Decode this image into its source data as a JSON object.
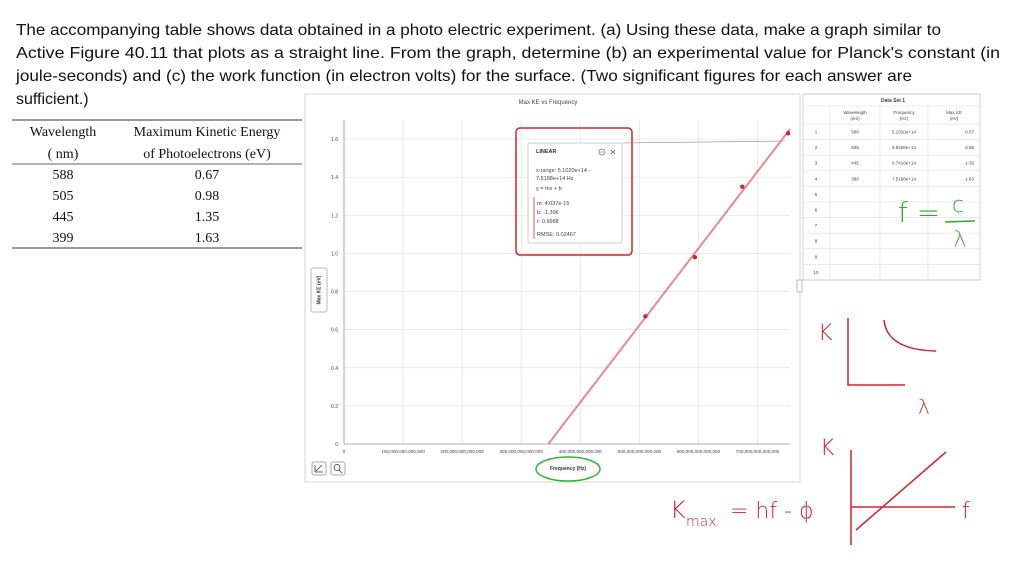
{
  "problem": {
    "lines": [
      "The accompanying table shows data obtained in a photo electric experiment. (a) Using these data, make a graph similar to",
      "Active Figure 40.11 that plots as a straight line. From the graph, determine (b) an experimental value for Planck's constant (in",
      "joule-seconds) and (c) the work function (in electron volts) for the surface. (Two significant figures for each answer are",
      "sufficient.)"
    ]
  },
  "table": {
    "headers": [
      [
        "Wavelength",
        "( nm)"
      ],
      [
        "Maximum Kinetic Energy",
        "of Photoelectrons (eV)"
      ]
    ],
    "rows": [
      [
        "588",
        "0.67"
      ],
      [
        "505",
        "0.98"
      ],
      [
        "445",
        "1.35"
      ],
      [
        "399",
        "1.63"
      ]
    ]
  },
  "chart_data": {
    "type": "scatter",
    "title": "Max KE vs Frequency",
    "x_label": "Frequency (Hz)",
    "y_label": "Max KE (eV)",
    "x": [
      510200000000000,
      594060000000000,
      674160000000000,
      751880000000000
    ],
    "values": [
      0.67,
      0.98,
      1.35,
      1.63
    ],
    "color": "#c0282e",
    "xlim": [
      0,
      755000000000000
    ],
    "ylim": [
      0,
      1.7
    ],
    "xticks": [
      0,
      {
        "value": 100000000000000,
        "label": "100,000,000,000,000"
      },
      {
        "value": 200000000000000,
        "label": "200,000,000,000,000"
      },
      {
        "value": 300000000000000,
        "label": "300,000,000,000,000"
      },
      {
        "value": 400000000000000,
        "label": "400,000,000,000,000"
      },
      {
        "value": 500000000000000,
        "label": "500,000,000,000,000"
      },
      {
        "value": 600000000000000,
        "label": "600,000,000,000,000"
      },
      {
        "value": 700000000000000,
        "label": "700,000,000,000,000"
      }
    ],
    "yticks": [
      0,
      0.2,
      0.4,
      0.6,
      0.8,
      {
        "value": 1,
        "label": "1.0"
      },
      1.2,
      1.4,
      1.6
    ],
    "grid": true,
    "fit": {
      "name": "LINEAR",
      "x_range": [
        "x-range: 5.1020e+14 -",
        "7.5188e+14 Hz"
      ],
      "equation": "y = mx + b",
      "m": {
        "value": 4.037e-15,
        "label": "m: 4.037e-15"
      },
      "b": {
        "value": -1.396,
        "label": "b: -1.396"
      },
      "r": "r: 0.9988",
      "rmse": "RMSE: 0.02467",
      "color": "#e58a95"
    }
  },
  "data_set": {
    "title": "Data Set 1",
    "columns": [
      [
        "Wavelength",
        "(nm)"
      ],
      [
        "Frequency",
        "(Hz)"
      ],
      [
        "Max KE",
        "(eV)"
      ]
    ],
    "rows": [
      [
        "1",
        "588",
        "5.1020e+14",
        "0.67"
      ],
      [
        "2",
        "505",
        "5.9406e+14",
        "0.98"
      ],
      [
        "3",
        "445",
        "6.7416e+14",
        "1.35"
      ],
      [
        "4",
        "399",
        "7.5188e+14",
        "1.63"
      ],
      [
        "5"
      ],
      [
        "6"
      ],
      [
        "7"
      ],
      [
        "8"
      ],
      [
        "9"
      ],
      [
        "10"
      ]
    ]
  },
  "annotations": {
    "frequency_relation": {
      "lhs": "f =",
      "numerator": "c",
      "denominator": "λ"
    },
    "graph1": {
      "y": "K",
      "x": "λ"
    },
    "graph2": {
      "y": "K",
      "x": "f"
    },
    "formula": {
      "symbol": "K",
      "subscript": "max",
      "rest": "= hf - ϕ"
    }
  }
}
